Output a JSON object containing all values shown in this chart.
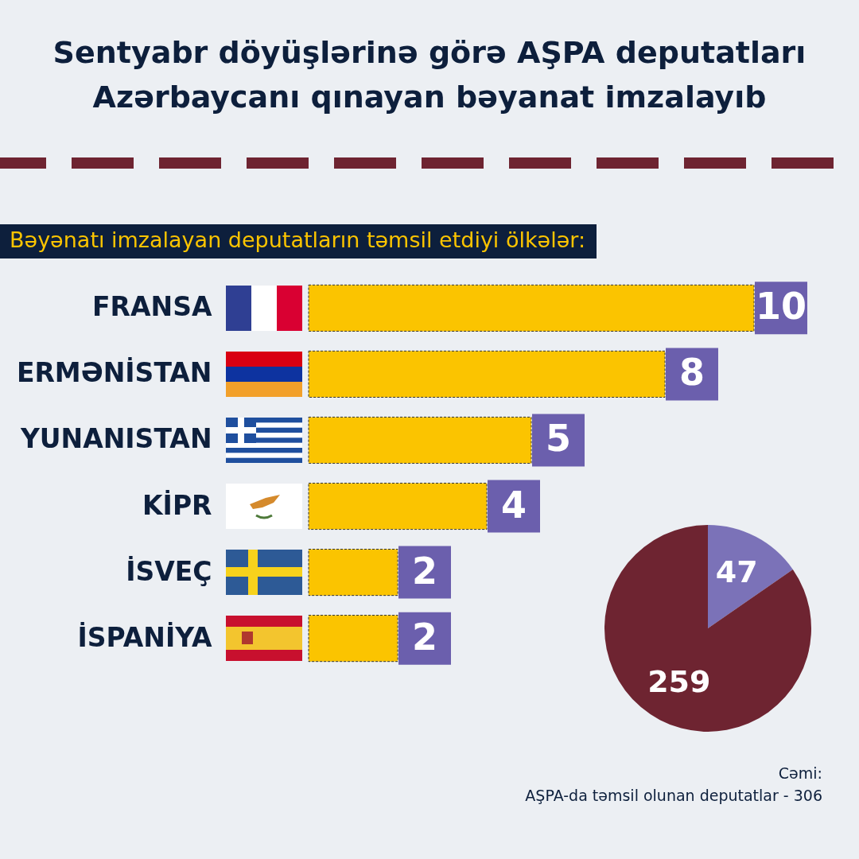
{
  "chart_data": [
    {
      "type": "bar",
      "title": "Sentyabr döyüşlərinə görə AŞPA deputatları Azərbaycanı qınayan bəyanat imzalayıb",
      "subtitle": "Bəyənatı imzalayan deputatların təmsil etdiyi ölkələr:",
      "orientation": "horizontal",
      "categories": [
        "FRANSA",
        "ERMƏNİSTAN",
        "YUNANISTAN",
        "KİPR",
        "İSVEÇ",
        "İSPANİYA"
      ],
      "values": [
        10,
        8,
        5,
        4,
        2,
        2
      ],
      "color": "#fbc400",
      "data_labels": true,
      "tick_labels": "y"
    },
    {
      "type": "pie",
      "categories": [
        null,
        null
      ],
      "values": [
        47,
        259
      ],
      "colors": [
        "#7b72b8",
        "#6e2431"
      ],
      "data_labels": true,
      "annotations": [
        "Cəmi:",
        "AŞPA-da təmsil olunan deputatlar - 306"
      ]
    }
  ]
}
